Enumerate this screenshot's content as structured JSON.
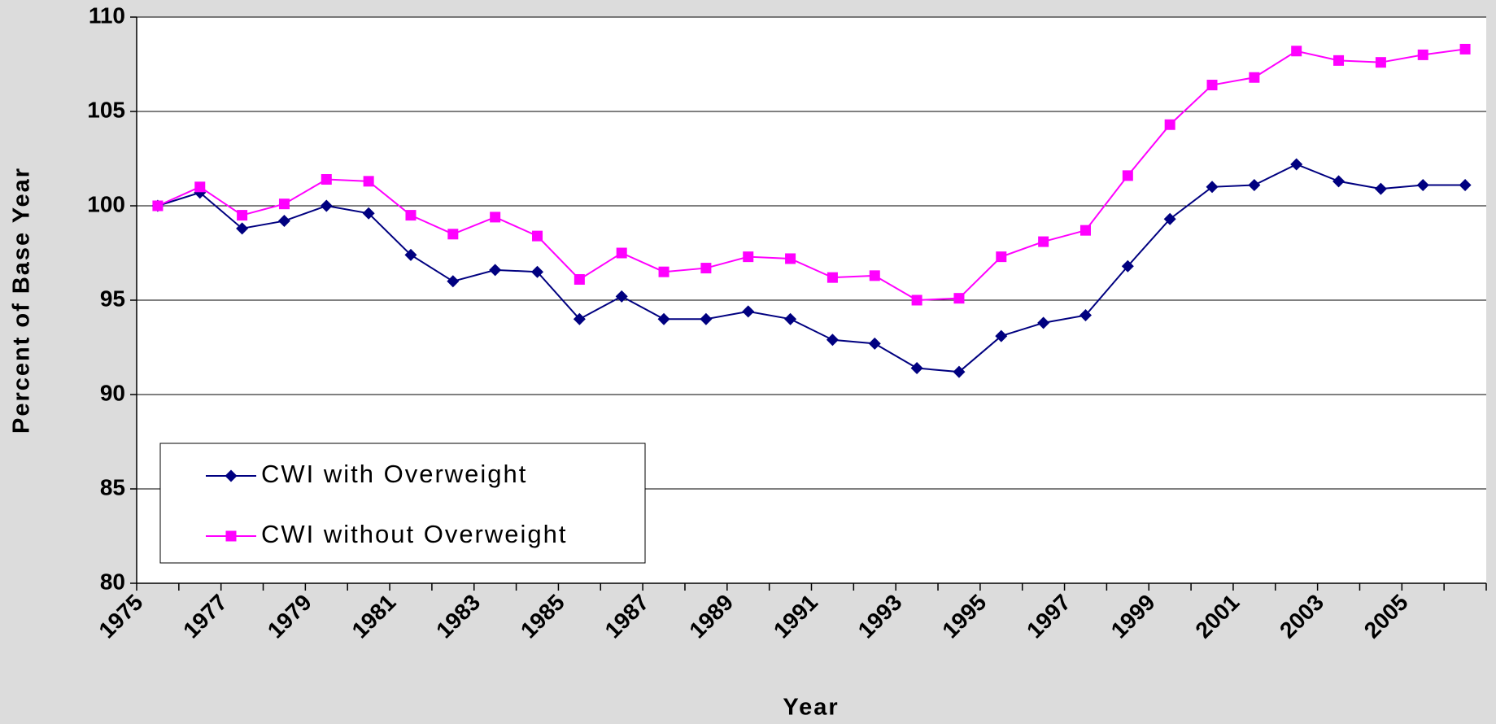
{
  "chart_data": {
    "type": "line",
    "x_label": "Year",
    "y_label": "Percent of Base Year",
    "categories": [
      "1975",
      null,
      "1977",
      null,
      "1979",
      null,
      "1981",
      null,
      "1983",
      null,
      "1985",
      null,
      "1987",
      null,
      "1989",
      null,
      "1991",
      null,
      "1993",
      null,
      "1995",
      null,
      "1997",
      null,
      "1999",
      null,
      "2001",
      null,
      "2003",
      null,
      "2005",
      null
    ],
    "series": [
      {
        "name": "CWI with Overweight",
        "color": "#000080",
        "marker": "diamond",
        "values": [
          100,
          100.7,
          98.8,
          99.2,
          100.0,
          99.6,
          97.4,
          96.0,
          96.6,
          96.5,
          94.0,
          95.2,
          94.0,
          94.0,
          94.4,
          94.0,
          92.9,
          92.7,
          91.4,
          91.2,
          93.1,
          93.8,
          94.2,
          96.8,
          99.3,
          101.0,
          101.1,
          102.2,
          101.3,
          100.9,
          101.1,
          101.1
        ]
      },
      {
        "name": "CWI without Overweight",
        "color": "#ff00ff",
        "marker": "square",
        "values": [
          100,
          101.0,
          99.5,
          100.1,
          101.4,
          101.3,
          99.5,
          98.5,
          99.4,
          98.4,
          96.1,
          97.5,
          96.5,
          96.7,
          97.3,
          97.2,
          96.2,
          96.3,
          95.0,
          95.1,
          97.3,
          98.1,
          98.7,
          101.6,
          104.3,
          106.4,
          106.8,
          108.2,
          107.7,
          107.6,
          108.0,
          108.3
        ]
      }
    ],
    "ylim": [
      80,
      110
    ],
    "yticks": [
      80,
      85,
      90,
      95,
      100,
      105,
      110
    ],
    "grid": true,
    "legend": "lower left"
  }
}
